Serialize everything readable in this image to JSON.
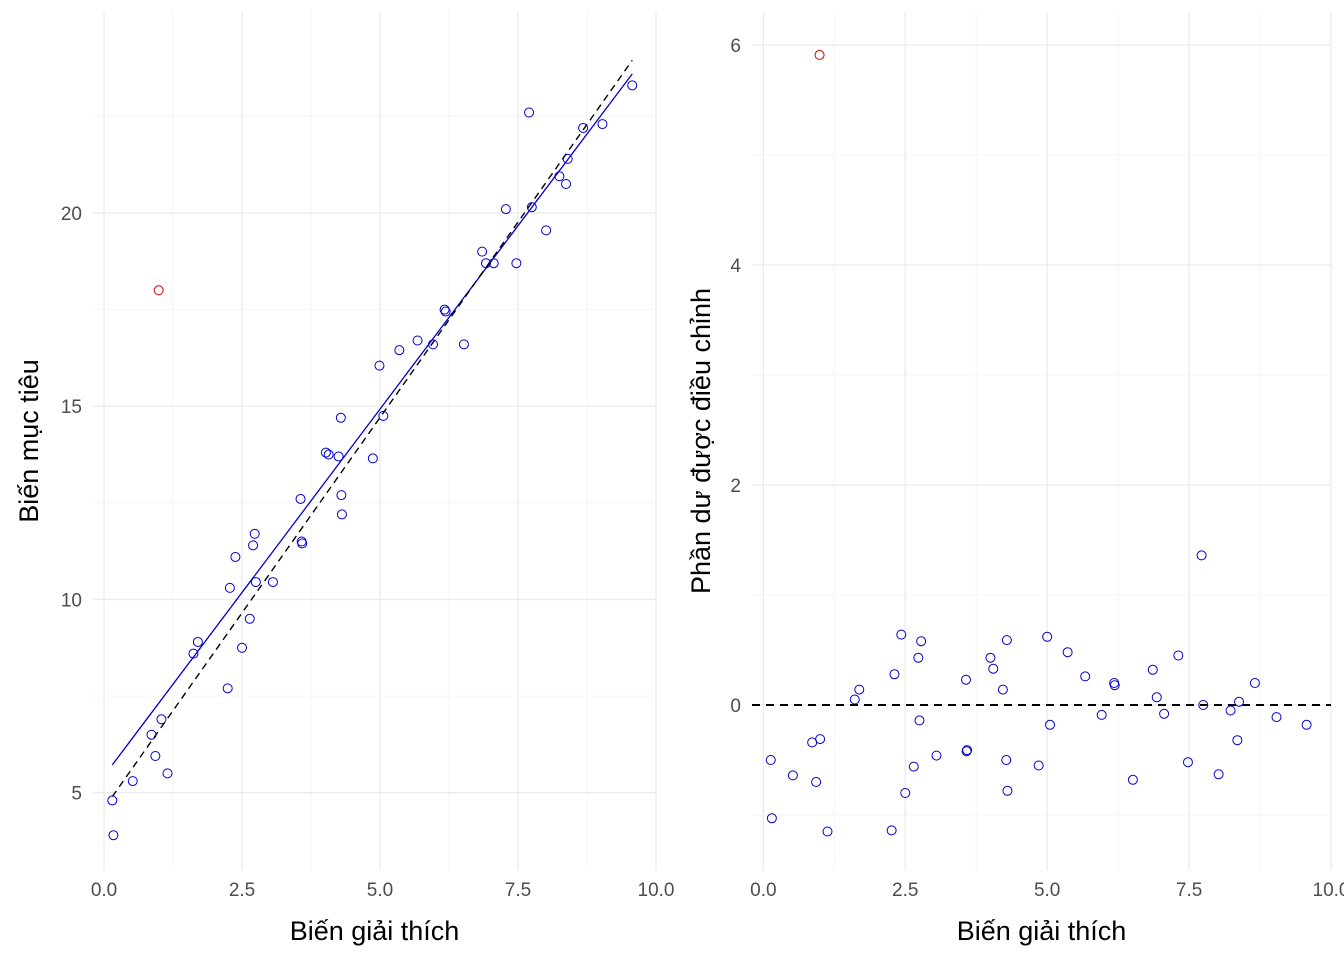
{
  "colors": {
    "point": "#0000cc",
    "outlier": "#d40000",
    "fit_line": "#0000cc",
    "ref_line": "#000000"
  },
  "chart_data": [
    {
      "type": "scatter",
      "title": "",
      "xlabel": "Biến giải thích",
      "ylabel": "Biến mục tiêu",
      "xlim": [
        -0.2,
        10.0
      ],
      "ylim": [
        3.0,
        25.2
      ],
      "x_ticks": [
        0.0,
        2.5,
        5.0,
        7.5,
        10.0
      ],
      "x_tick_labels": [
        "0.0",
        "2.5",
        "5.0",
        "7.5",
        "10.0"
      ],
      "y_ticks": [
        5,
        10,
        15,
        20
      ],
      "y_tick_labels": [
        "5",
        "10",
        "15",
        "20"
      ],
      "grid": true,
      "series": [
        {
          "name": "observations",
          "points": [
            [
              0.15,
              4.8
            ],
            [
              0.17,
              3.9
            ],
            [
              0.52,
              5.3
            ],
            [
              0.86,
              6.5
            ],
            [
              0.93,
              5.95
            ],
            [
              1.04,
              6.9
            ],
            [
              1.15,
              5.5
            ],
            [
              1.62,
              8.6
            ],
            [
              1.7,
              8.9
            ],
            [
              2.24,
              7.7
            ],
            [
              2.28,
              10.3
            ],
            [
              2.38,
              11.1
            ],
            [
              2.5,
              8.75
            ],
            [
              2.64,
              9.5
            ],
            [
              2.7,
              11.4
            ],
            [
              2.73,
              11.7
            ],
            [
              2.75,
              10.45
            ],
            [
              3.06,
              10.45
            ],
            [
              3.56,
              12.6
            ],
            [
              3.58,
              11.5
            ],
            [
              3.59,
              11.45
            ],
            [
              4.02,
              13.8
            ],
            [
              4.07,
              13.75
            ],
            [
              4.25,
              13.7
            ],
            [
              4.29,
              14.7
            ],
            [
              4.3,
              12.7
            ],
            [
              4.31,
              12.2
            ],
            [
              4.87,
              13.65
            ],
            [
              4.99,
              16.05
            ],
            [
              5.06,
              14.75
            ],
            [
              5.35,
              16.45
            ],
            [
              5.68,
              16.7
            ],
            [
              5.96,
              16.6
            ],
            [
              6.17,
              17.5
            ],
            [
              6.19,
              17.45
            ],
            [
              6.52,
              16.6
            ],
            [
              6.85,
              19.0
            ],
            [
              6.92,
              18.7
            ],
            [
              7.06,
              18.7
            ],
            [
              7.28,
              20.1
            ],
            [
              7.47,
              18.7
            ],
            [
              7.7,
              22.6
            ],
            [
              7.75,
              20.15
            ],
            [
              8.01,
              19.55
            ],
            [
              8.25,
              20.95
            ],
            [
              8.37,
              20.75
            ],
            [
              8.4,
              21.4
            ],
            [
              8.68,
              22.2
            ],
            [
              9.03,
              22.3
            ],
            [
              9.57,
              23.3
            ]
          ]
        },
        {
          "name": "outlier",
          "points": [
            [
              0.99,
              18.0
            ]
          ]
        }
      ],
      "lines": [
        {
          "name": "fitted",
          "style": "solid",
          "from": [
            0.15,
            5.72
          ],
          "to": [
            9.57,
            23.6
          ]
        },
        {
          "name": "true",
          "style": "dashed",
          "from": [
            0.15,
            4.9
          ],
          "to": [
            9.57,
            23.95
          ]
        }
      ]
    },
    {
      "type": "scatter",
      "title": "",
      "xlabel": "Biến giải thích",
      "ylabel": "Phần dư được điều chỉnh",
      "xlim": [
        -0.2,
        10.0
      ],
      "ylim": [
        -1.5,
        6.3
      ],
      "x_ticks": [
        0.0,
        2.5,
        5.0,
        7.5,
        10.0
      ],
      "x_tick_labels": [
        "0.0",
        "2.5",
        "5.0",
        "7.5",
        "10.0"
      ],
      "y_ticks": [
        0,
        2,
        4,
        6
      ],
      "y_tick_labels": [
        "0",
        "2",
        "4",
        "6"
      ],
      "grid": true,
      "hline": {
        "y": 0,
        "style": "dashed"
      },
      "series": [
        {
          "name": "residuals",
          "points": [
            [
              0.13,
              -0.5
            ],
            [
              0.15,
              -1.03
            ],
            [
              0.52,
              -0.64
            ],
            [
              0.86,
              -0.34
            ],
            [
              0.93,
              -0.7
            ],
            [
              1.0,
              -0.31
            ],
            [
              1.13,
              -1.15
            ],
            [
              1.61,
              0.05
            ],
            [
              1.69,
              0.14
            ],
            [
              2.26,
              -1.14
            ],
            [
              2.31,
              0.28
            ],
            [
              2.43,
              0.64
            ],
            [
              2.5,
              -0.8
            ],
            [
              2.65,
              -0.56
            ],
            [
              2.73,
              0.43
            ],
            [
              2.75,
              -0.14
            ],
            [
              2.78,
              0.58
            ],
            [
              3.05,
              -0.46
            ],
            [
              3.57,
              0.23
            ],
            [
              3.58,
              -0.42
            ],
            [
              3.59,
              -0.41
            ],
            [
              4.0,
              0.43
            ],
            [
              4.05,
              0.33
            ],
            [
              4.22,
              0.14
            ],
            [
              4.28,
              -0.5
            ],
            [
              4.29,
              0.59
            ],
            [
              4.3,
              -0.78
            ],
            [
              4.85,
              -0.55
            ],
            [
              5.0,
              0.62
            ],
            [
              5.05,
              -0.18
            ],
            [
              5.36,
              0.48
            ],
            [
              5.67,
              0.26
            ],
            [
              5.96,
              -0.09
            ],
            [
              6.18,
              0.2
            ],
            [
              6.19,
              0.18
            ],
            [
              6.51,
              -0.68
            ],
            [
              6.86,
              0.32
            ],
            [
              6.93,
              0.07
            ],
            [
              7.06,
              -0.08
            ],
            [
              7.31,
              0.45
            ],
            [
              7.48,
              -0.52
            ],
            [
              7.72,
              1.36
            ],
            [
              7.75,
              0.0
            ],
            [
              8.02,
              -0.63
            ],
            [
              8.23,
              -0.05
            ],
            [
              8.35,
              -0.32
            ],
            [
              8.38,
              0.03
            ],
            [
              8.66,
              0.2
            ],
            [
              9.04,
              -0.11
            ],
            [
              9.57,
              -0.18
            ]
          ]
        },
        {
          "name": "outlier",
          "points": [
            [
              0.99,
              5.91
            ]
          ]
        }
      ]
    }
  ]
}
